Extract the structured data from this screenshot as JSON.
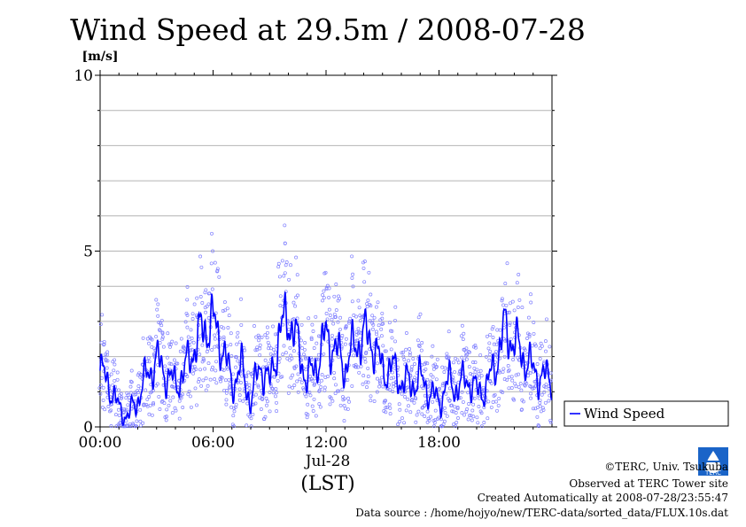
{
  "chart_data": {
    "type": "scatter",
    "title": "Wind Speed at 29.5m / 2008-07-28",
    "ylabel": "[m/s]",
    "ylim": [
      0,
      10
    ],
    "xlim": [
      "00:00",
      "23:59"
    ],
    "y_ticks": [
      "0",
      "5",
      "10"
    ],
    "x_ticks": [
      "00:00",
      "06:00",
      "12:00",
      "18:00"
    ],
    "date_label": "Jul-28",
    "xlabel": "(LST)",
    "grid": true,
    "legend_position": "right",
    "series": [
      {
        "name": "Wind Speed",
        "color": "#0000ff",
        "scatter_color": "#8080ff",
        "smoothed_hourly_x": [
          "00:00",
          "00:30",
          "01:00",
          "01:30",
          "02:00",
          "02:30",
          "03:00",
          "03:30",
          "04:00",
          "04:30",
          "05:00",
          "05:30",
          "06:00",
          "06:30",
          "07:00",
          "07:30",
          "08:00",
          "08:30",
          "09:00",
          "09:30",
          "10:00",
          "10:30",
          "11:00",
          "11:30",
          "12:00",
          "12:30",
          "13:00",
          "13:30",
          "14:00",
          "14:30",
          "15:00",
          "15:30",
          "16:00",
          "16:30",
          "17:00",
          "17:30",
          "18:00",
          "18:30",
          "19:00",
          "19:30",
          "20:00",
          "20:30",
          "21:00",
          "21:30",
          "22:00",
          "22:30",
          "23:00",
          "23:30"
        ],
        "smoothed_values": [
          1.6,
          1.2,
          0.5,
          0.3,
          0.8,
          1.5,
          1.9,
          1.5,
          1.2,
          1.6,
          2.3,
          2.8,
          3.0,
          2.3,
          1.2,
          1.7,
          0.7,
          1.8,
          1.2,
          2.6,
          3.2,
          2.3,
          1.3,
          1.8,
          2.6,
          2.2,
          1.7,
          2.3,
          2.6,
          2.4,
          1.6,
          1.7,
          1.3,
          1.2,
          1.4,
          1.0,
          0.7,
          1.3,
          1.1,
          1.4,
          1.0,
          1.1,
          1.8,
          2.8,
          2.4,
          2.0,
          1.6,
          1.4
        ]
      }
    ]
  },
  "footer": {
    "copyright": "©TERC, Univ. Tsukuba",
    "site": "Observed at TERC Tower site",
    "created": "Created Automatically at 2008-07-28/23:55:47",
    "source": "Data source : /home/hojyo/new/TERC-data/sorted_data/FLUX.10s.dat"
  },
  "logo": {
    "text": "TERC"
  }
}
